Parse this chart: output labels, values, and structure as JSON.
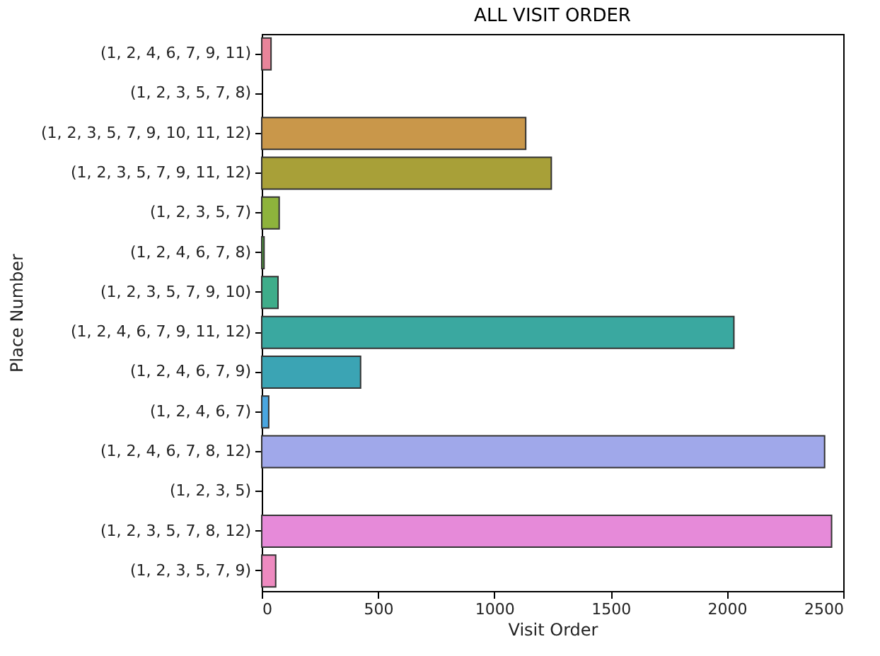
{
  "chart_data": {
    "type": "bar",
    "orientation": "horizontal",
    "title": "ALL VISIT ORDER",
    "xlabel": "Visit Order",
    "ylabel": "Place Number",
    "categories": [
      "(1, 2, 4, 6, 7, 9, 11)",
      "(1, 2, 3, 5, 7, 8)",
      "(1, 2, 3, 5, 7, 9, 10, 11, 12)",
      "(1, 2, 3, 5, 7, 9, 11, 12)",
      "(1, 2, 3, 5, 7)",
      "(1, 2, 4, 6, 7, 8)",
      "(1, 2, 3, 5, 7, 9, 10)",
      "(1, 2, 4, 6, 7, 9, 11, 12)",
      "(1, 2, 4, 6, 7, 9)",
      "(1, 2, 4, 6, 7)",
      "(1, 2, 4, 6, 7, 8, 12)",
      "(1, 2, 3, 5)",
      "(1, 2, 3, 5, 7, 8, 12)",
      "(1, 2, 3, 5, 7, 9)"
    ],
    "values": [
      40,
      null,
      1135,
      1245,
      75,
      10,
      70,
      2030,
      425,
      30,
      2420,
      0,
      2450,
      60
    ],
    "colors": [
      "#e8849a",
      "#d98a3a",
      "#c9974a",
      "#a8a038",
      "#8eb33c",
      "#55aa40",
      "#3fad8a",
      "#3aa8a0",
      "#3ba4b4",
      "#4aa6e0",
      "#a0a8ea",
      "#c890ea",
      "#e68ad9",
      "#ee8ac0"
    ],
    "xlim": [
      0,
      2500
    ],
    "xticks": [
      0,
      500,
      1000,
      1500,
      2000,
      2500
    ],
    "grid": false
  }
}
